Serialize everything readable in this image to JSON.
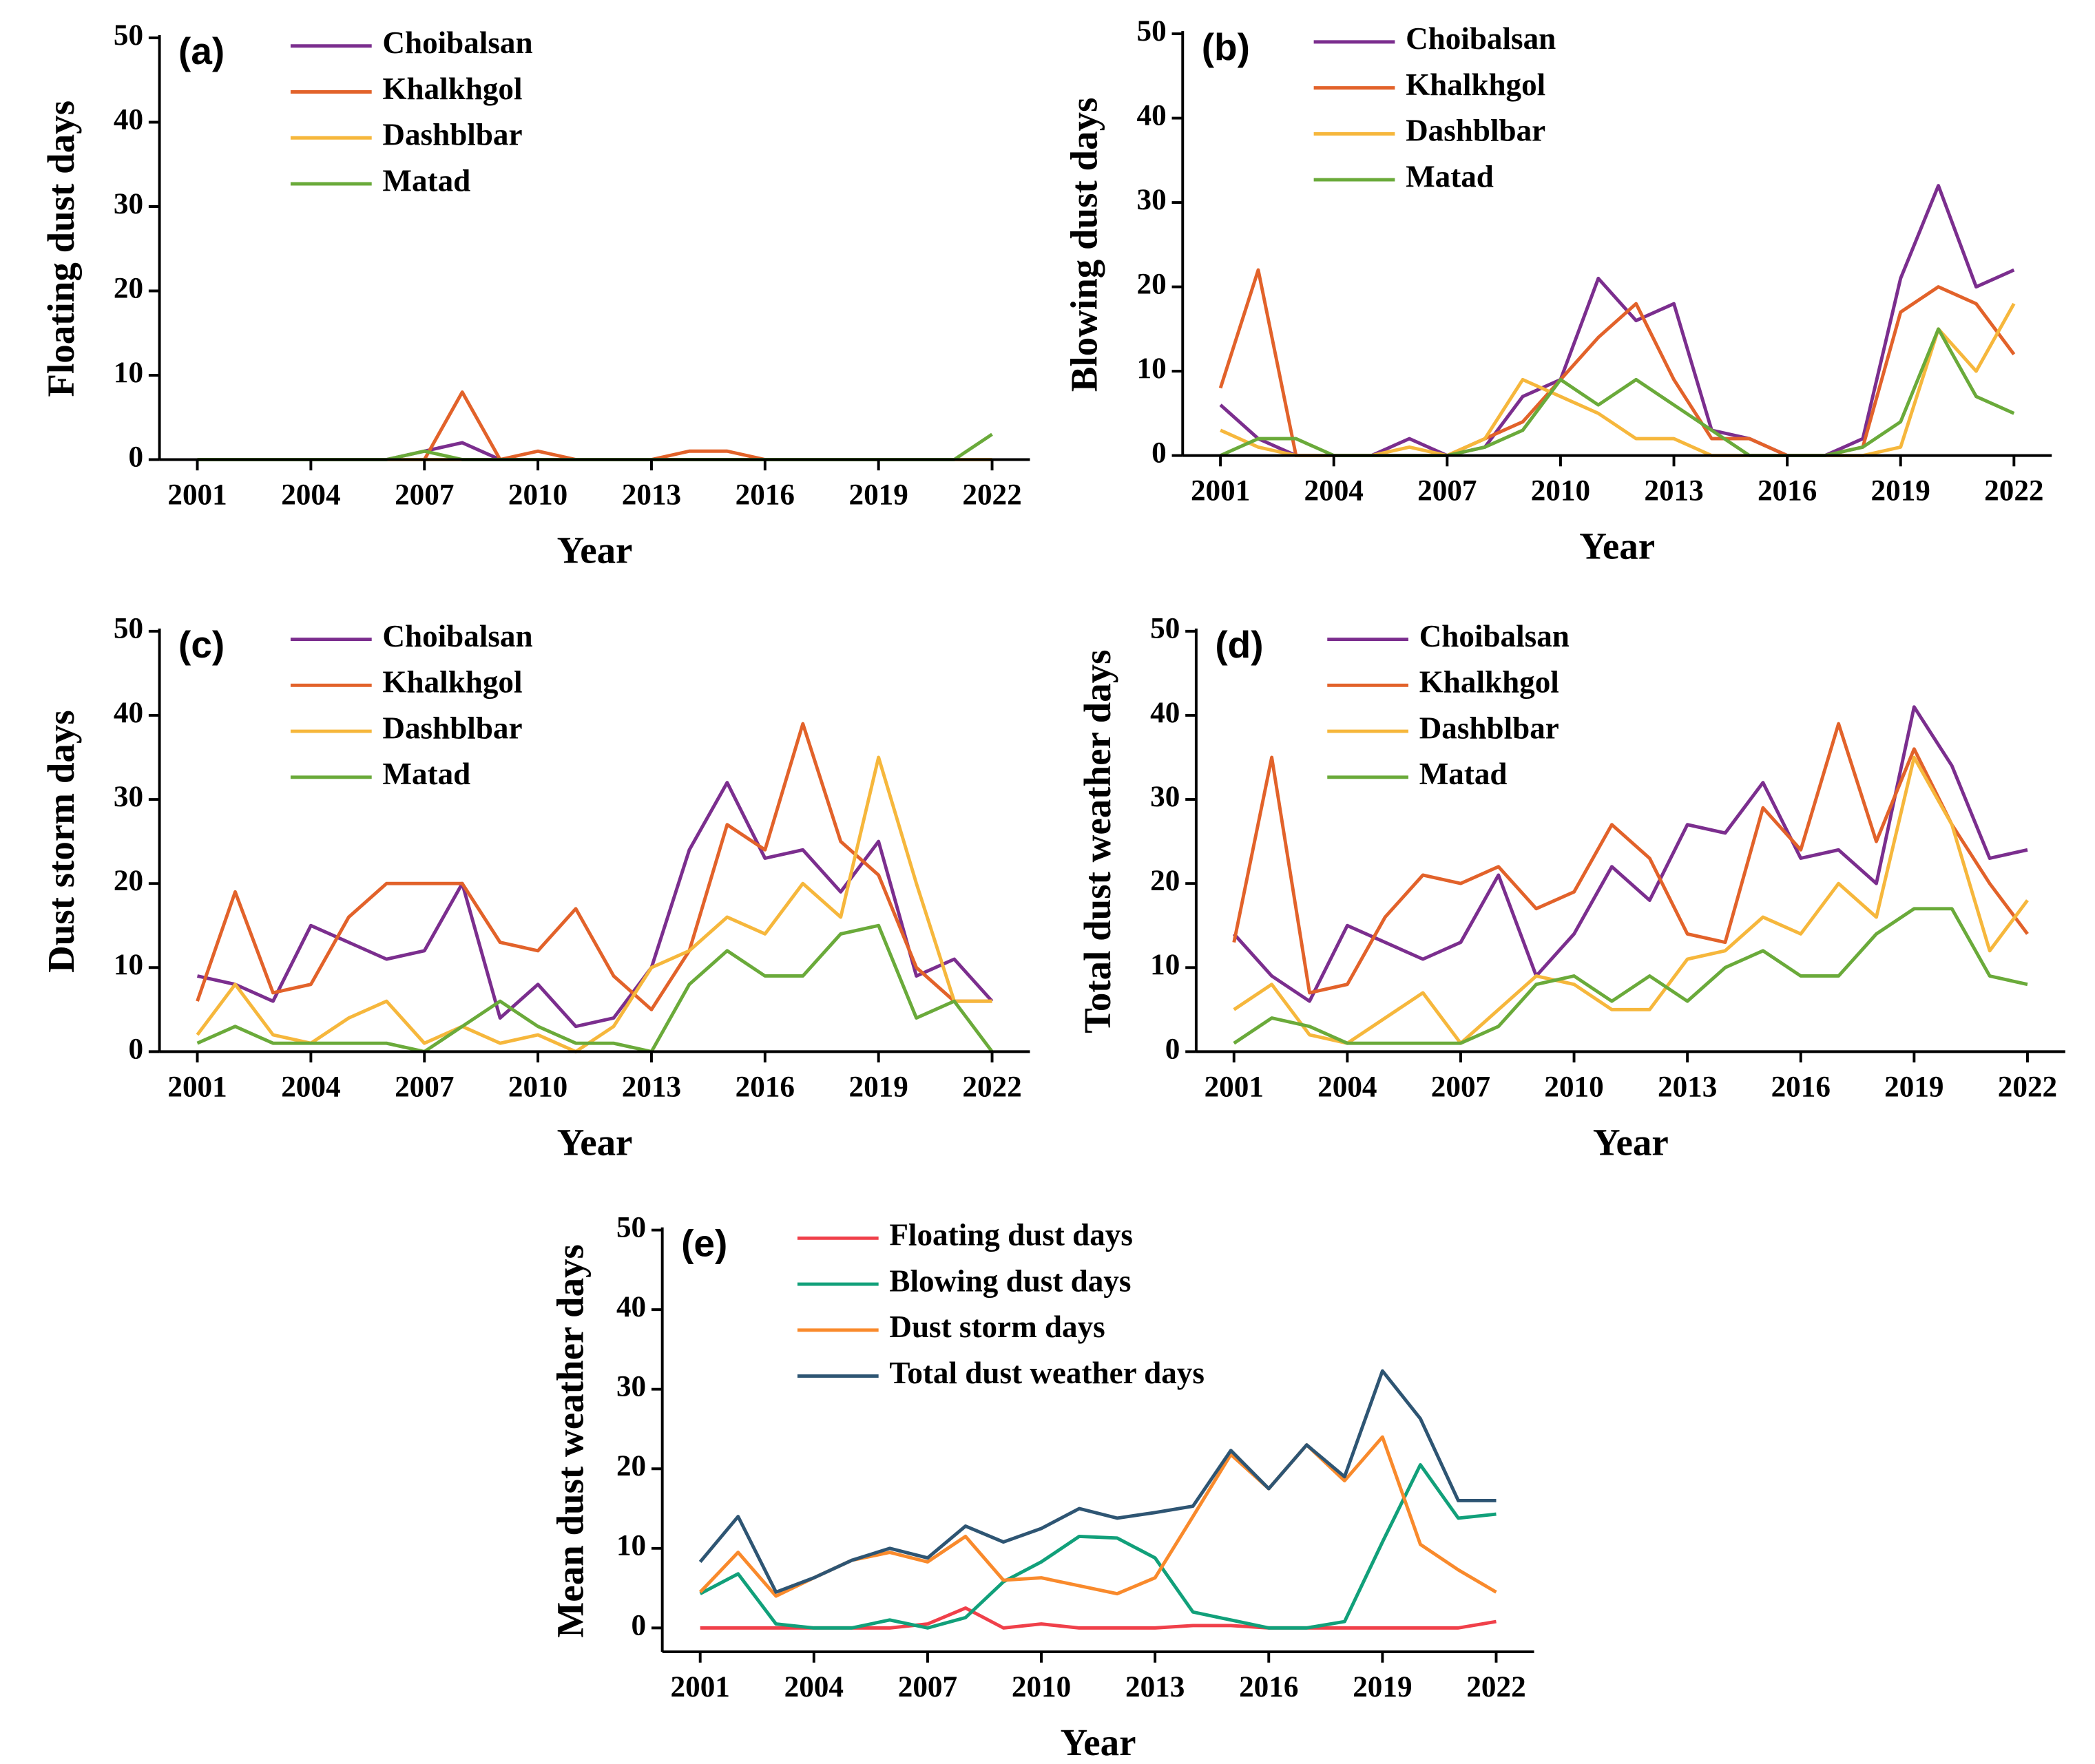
{
  "chart_data": [
    {
      "type": "line",
      "title": "(a)",
      "xlabel": "Year",
      "ylabel": "Floating dust days",
      "x": [
        2001,
        2002,
        2003,
        2004,
        2005,
        2006,
        2007,
        2008,
        2009,
        2010,
        2011,
        2012,
        2013,
        2014,
        2015,
        2016,
        2017,
        2018,
        2019,
        2020,
        2021,
        2022
      ],
      "series": [
        {
          "name": "Choibalsan",
          "color": "#7b2e8e",
          "values": [
            0,
            0,
            0,
            0,
            0,
            0,
            1,
            2,
            0,
            0,
            0,
            0,
            0,
            0,
            0,
            0,
            0,
            0,
            0,
            0,
            0,
            0
          ]
        },
        {
          "name": "Khalkhgol",
          "color": "#e2622a",
          "values": [
            0,
            0,
            0,
            0,
            0,
            0,
            0,
            8,
            0,
            1,
            0,
            0,
            0,
            1,
            1,
            0,
            0,
            0,
            0,
            0,
            0,
            0
          ]
        },
        {
          "name": "Dashblbar",
          "color": "#f6b73c",
          "values": [
            0,
            0,
            0,
            0,
            0,
            0,
            0,
            0,
            0,
            0,
            0,
            0,
            0,
            0,
            0,
            0,
            0,
            0,
            0,
            0,
            0,
            0
          ]
        },
        {
          "name": "Matad",
          "color": "#6aaa3a",
          "values": [
            0,
            0,
            0,
            0,
            0,
            0,
            1,
            0,
            0,
            0,
            0,
            0,
            0,
            0,
            0,
            0,
            0,
            0,
            0,
            0,
            0,
            3
          ]
        }
      ],
      "xlim": [
        2000,
        2023
      ],
      "ylim": [
        0,
        50
      ],
      "xticks": [
        2001,
        2004,
        2007,
        2010,
        2013,
        2016,
        2019,
        2022
      ],
      "yticks": [
        0,
        10,
        20,
        30,
        40,
        50
      ]
    },
    {
      "type": "line",
      "title": "(b)",
      "xlabel": "Year",
      "ylabel": "Blowing dust days",
      "x": [
        2001,
        2002,
        2003,
        2004,
        2005,
        2006,
        2007,
        2008,
        2009,
        2010,
        2011,
        2012,
        2013,
        2014,
        2015,
        2016,
        2017,
        2018,
        2019,
        2020,
        2021,
        2022
      ],
      "series": [
        {
          "name": "Choibalsan",
          "color": "#7b2e8e",
          "values": [
            6,
            2,
            0,
            0,
            0,
            2,
            0,
            1,
            7,
            9,
            21,
            16,
            18,
            3,
            2,
            0,
            0,
            2,
            21,
            32,
            20,
            22
          ]
        },
        {
          "name": "Khalkhgol",
          "color": "#e2622a",
          "values": [
            8,
            22,
            0,
            0,
            0,
            0,
            0,
            2,
            4,
            9,
            14,
            18,
            9,
            2,
            2,
            0,
            0,
            1,
            17,
            20,
            18,
            12
          ]
        },
        {
          "name": "Dashblbar",
          "color": "#f6b73c",
          "values": [
            3,
            1,
            0,
            0,
            0,
            1,
            0,
            2,
            9,
            7,
            5,
            2,
            2,
            0,
            0,
            0,
            0,
            0,
            1,
            15,
            10,
            18
          ]
        },
        {
          "name": "Matad",
          "color": "#6aaa3a",
          "values": [
            0,
            2,
            2,
            0,
            0,
            0,
            0,
            1,
            3,
            9,
            6,
            9,
            6,
            3,
            0,
            0,
            0,
            1,
            4,
            15,
            7,
            5
          ]
        }
      ],
      "xlim": [
        2000,
        2023
      ],
      "ylim": [
        0,
        50
      ],
      "xticks": [
        2001,
        2004,
        2007,
        2010,
        2013,
        2016,
        2019,
        2022
      ],
      "yticks": [
        0,
        10,
        20,
        30,
        40,
        50
      ]
    },
    {
      "type": "line",
      "title": "(c)",
      "xlabel": "Year",
      "ylabel": "Dust storm days",
      "x": [
        2001,
        2002,
        2003,
        2004,
        2005,
        2006,
        2007,
        2008,
        2009,
        2010,
        2011,
        2012,
        2013,
        2014,
        2015,
        2016,
        2017,
        2018,
        2019,
        2020,
        2021,
        2022
      ],
      "series": [
        {
          "name": "Choibalsan",
          "color": "#7b2e8e",
          "values": [
            9,
            8,
            6,
            15,
            13,
            11,
            12,
            20,
            4,
            8,
            3,
            4,
            10,
            24,
            32,
            23,
            24,
            19,
            25,
            9,
            11,
            6
          ]
        },
        {
          "name": "Khalkhgol",
          "color": "#e2622a",
          "values": [
            6,
            19,
            7,
            8,
            16,
            20,
            20,
            20,
            13,
            12,
            17,
            9,
            5,
            12,
            27,
            24,
            39,
            25,
            21,
            10,
            6,
            6
          ]
        },
        {
          "name": "Dashblbar",
          "color": "#f6b73c",
          "values": [
            2,
            8,
            2,
            1,
            4,
            6,
            1,
            3,
            1,
            2,
            0,
            3,
            10,
            12,
            16,
            14,
            20,
            16,
            35,
            20,
            6,
            6
          ]
        },
        {
          "name": "Matad",
          "color": "#6aaa3a",
          "values": [
            1,
            3,
            1,
            1,
            1,
            1,
            0,
            3,
            6,
            3,
            1,
            1,
            0,
            8,
            12,
            9,
            9,
            14,
            15,
            4,
            6,
            0
          ]
        }
      ],
      "xlim": [
        2000,
        2023
      ],
      "ylim": [
        0,
        50
      ],
      "xticks": [
        2001,
        2004,
        2007,
        2010,
        2013,
        2016,
        2019,
        2022
      ],
      "yticks": [
        0,
        10,
        20,
        30,
        40,
        50
      ]
    },
    {
      "type": "line",
      "title": "(d)",
      "xlabel": "Year",
      "ylabel": "Total dust weather days",
      "x": [
        2001,
        2002,
        2003,
        2004,
        2005,
        2006,
        2007,
        2008,
        2009,
        2010,
        2011,
        2012,
        2013,
        2014,
        2015,
        2016,
        2017,
        2018,
        2019,
        2020,
        2021,
        2022
      ],
      "series": [
        {
          "name": "Choibalsan",
          "color": "#7b2e8e",
          "values": [
            14,
            9,
            6,
            15,
            13,
            11,
            13,
            21,
            9,
            14,
            22,
            18,
            27,
            26,
            32,
            23,
            24,
            20,
            41,
            34,
            23,
            24
          ]
        },
        {
          "name": "Khalkhgol",
          "color": "#e2622a",
          "values": [
            13,
            35,
            7,
            8,
            16,
            21,
            20,
            22,
            17,
            19,
            27,
            23,
            14,
            13,
            29,
            24,
            39,
            25,
            36,
            27,
            20,
            14
          ]
        },
        {
          "name": "Dashblbar",
          "color": "#f6b73c",
          "values": [
            5,
            8,
            2,
            1,
            4,
            7,
            1,
            5,
            9,
            8,
            5,
            5,
            11,
            12,
            16,
            14,
            20,
            16,
            35,
            27,
            12,
            18
          ]
        },
        {
          "name": "Matad",
          "color": "#6aaa3a",
          "values": [
            1,
            4,
            3,
            1,
            1,
            1,
            1,
            3,
            8,
            9,
            6,
            9,
            6,
            10,
            12,
            9,
            9,
            14,
            17,
            17,
            9,
            8
          ]
        }
      ],
      "xlim": [
        2000,
        2023
      ],
      "ylim": [
        0,
        50
      ],
      "xticks": [
        2001,
        2004,
        2007,
        2010,
        2013,
        2016,
        2019,
        2022
      ],
      "yticks": [
        0,
        10,
        20,
        30,
        40,
        50
      ]
    },
    {
      "type": "line",
      "title": "(e)",
      "xlabel": "Year",
      "ylabel": "Mean dust weather days",
      "x": [
        2001,
        2002,
        2003,
        2004,
        2005,
        2006,
        2007,
        2008,
        2009,
        2010,
        2011,
        2012,
        2013,
        2014,
        2015,
        2016,
        2017,
        2018,
        2019,
        2020,
        2021,
        2022
      ],
      "series": [
        {
          "name": "Floating dust days",
          "color": "#f0404a",
          "values": [
            0,
            0,
            0,
            0,
            0,
            0,
            0.5,
            2.5,
            0,
            0.5,
            0,
            0,
            0,
            0.3,
            0.3,
            0,
            0,
            0,
            0,
            0,
            0,
            0.8
          ]
        },
        {
          "name": "Blowing dust days",
          "color": "#11a07a",
          "values": [
            4.3,
            6.8,
            0.5,
            0,
            0,
            1,
            0,
            1.3,
            5.8,
            8.3,
            11.5,
            11.3,
            8.8,
            2,
            1,
            0,
            0,
            0.8,
            10.8,
            20.5,
            13.8,
            14.3
          ]
        },
        {
          "name": "Dust storm days",
          "color": "#f98a2c",
          "values": [
            4.5,
            9.5,
            4,
            6.3,
            8.5,
            9.5,
            8.3,
            11.5,
            6,
            6.3,
            5.3,
            4.3,
            6.3,
            14,
            21.8,
            17.5,
            23,
            18.5,
            24,
            10.5,
            7.3,
            4.5
          ]
        },
        {
          "name": "Total dust weather days",
          "color": "#2e5573",
          "values": [
            8.3,
            14,
            4.5,
            6.3,
            8.5,
            10,
            8.8,
            12.8,
            10.8,
            12.5,
            15,
            13.8,
            14.5,
            15.3,
            22.3,
            17.5,
            23,
            19,
            32.3,
            26.3,
            16,
            16
          ]
        }
      ],
      "xlim": [
        2000,
        2023
      ],
      "ylim": [
        -3,
        50
      ],
      "xticks": [
        2001,
        2004,
        2007,
        2010,
        2013,
        2016,
        2019,
        2022
      ],
      "yticks": [
        0,
        10,
        20,
        30,
        40,
        50
      ]
    }
  ]
}
